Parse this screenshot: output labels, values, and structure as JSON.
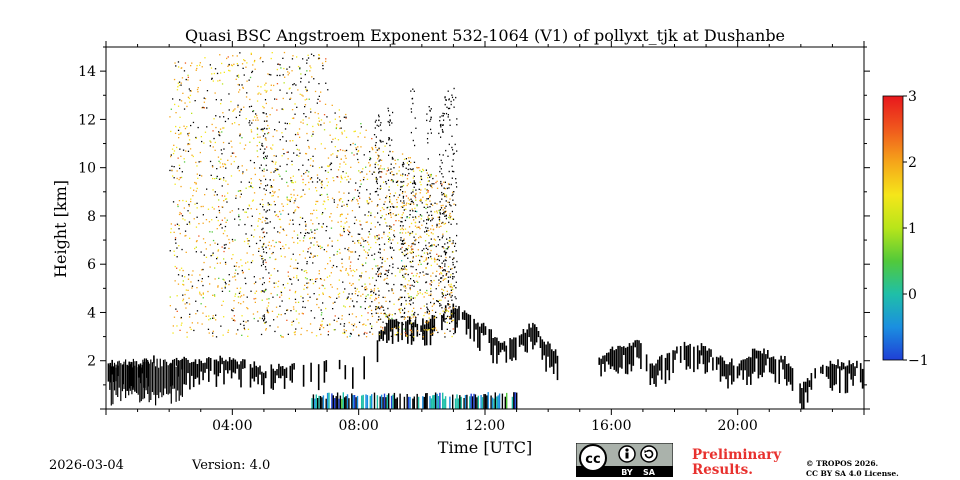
{
  "chart_data": {
    "type": "heatmap",
    "title": "Quasi BSC Angstroem Exponent 532-1064 (V1) of pollyxt_tjk at Dushanbe",
    "xlabel": "Time [UTC]",
    "ylabel": "Height [km]",
    "xlim_hours": [
      0,
      24
    ],
    "ylim_km": [
      0,
      15
    ],
    "x_ticks": [
      {
        "hour": 4,
        "label": "04:00"
      },
      {
        "hour": 8,
        "label": "08:00"
      },
      {
        "hour": 12,
        "label": "12:00"
      },
      {
        "hour": 16,
        "label": "16:00"
      },
      {
        "hour": 20,
        "label": "20:00"
      }
    ],
    "y_ticks": [
      {
        "value": 2,
        "label": "2"
      },
      {
        "value": 4,
        "label": "4"
      },
      {
        "value": 6,
        "label": "6"
      },
      {
        "value": 8,
        "label": "8"
      },
      {
        "value": 10,
        "label": "10"
      },
      {
        "value": 12,
        "label": "12"
      },
      {
        "value": 14,
        "label": "14"
      }
    ],
    "colorbar": {
      "range": [
        -1,
        3
      ],
      "ticks": [
        {
          "value": 3,
          "label": "3"
        },
        {
          "value": 2,
          "label": "2"
        },
        {
          "value": 1,
          "label": "1"
        },
        {
          "value": 0,
          "label": "0"
        },
        {
          "value": -1,
          "label": "−1"
        }
      ],
      "colors": [
        "#1f3fd6",
        "#1b8fe0",
        "#1fbfa8",
        "#52c93a",
        "#b8e51a",
        "#f5e61a",
        "#f5a51a",
        "#f0581d",
        "#e8171d"
      ]
    },
    "cloud_layer_top_km": [
      [
        0.0,
        1.9
      ],
      [
        0.5,
        1.8
      ],
      [
        1.0,
        1.9
      ],
      [
        1.5,
        2.1
      ],
      [
        2.0,
        2.0
      ],
      [
        2.5,
        2.0
      ],
      [
        3.0,
        2.0
      ],
      [
        3.5,
        2.1
      ],
      [
        4.0,
        2.0
      ],
      [
        4.5,
        1.9
      ],
      [
        5.0,
        1.6
      ],
      [
        5.5,
        1.8
      ],
      [
        6.0,
        1.9
      ],
      [
        7.0,
        1.9
      ],
      [
        8.0,
        1.8
      ],
      [
        9.0,
        3.8
      ],
      [
        9.5,
        3.7
      ],
      [
        10.0,
        3.6
      ],
      [
        10.5,
        4.0
      ],
      [
        11.0,
        4.3
      ],
      [
        11.5,
        3.8
      ],
      [
        12.0,
        3.4
      ],
      [
        12.5,
        2.6
      ],
      [
        13.0,
        3.0
      ],
      [
        13.5,
        3.6
      ],
      [
        14.0,
        2.6
      ],
      [
        14.3,
        2.2
      ],
      [
        15.5,
        2.1
      ],
      [
        16.3,
        2.6
      ],
      [
        16.8,
        2.8
      ],
      [
        17.3,
        1.8
      ],
      [
        17.8,
        2.4
      ],
      [
        18.5,
        2.7
      ],
      [
        19.0,
        2.5
      ],
      [
        19.5,
        2.0
      ],
      [
        20.0,
        1.9
      ],
      [
        20.5,
        2.4
      ],
      [
        21.0,
        2.3
      ],
      [
        21.5,
        2.1
      ],
      [
        22.0,
        1.0
      ],
      [
        22.5,
        1.6
      ],
      [
        23.0,
        1.9
      ],
      [
        23.5,
        1.9
      ],
      [
        24.0,
        1.8
      ]
    ],
    "aerosol_scatter_range_km": [
      3.0,
      14.8
    ],
    "aerosol_scatter_hours": [
      2.0,
      11.0
    ],
    "dominant_aerosol_exponent_range": [
      1.5,
      2.3
    ],
    "low_values_near_surface": {
      "hours": [
        6.5,
        13.0
      ],
      "height_km": [
        0.0,
        0.7
      ],
      "value_range": [
        -1.0,
        0.3
      ]
    }
  },
  "footer": {
    "date": "2026-03-04",
    "version": "Version: 4.0",
    "preliminary_line1": "Preliminary",
    "preliminary_line2": "Results.",
    "copyright_line1": "© TROPOS 2026.",
    "copyright_line2": "CC BY SA 4.0 License.",
    "badge_text_by": "BY",
    "badge_text_sa": "SA"
  }
}
